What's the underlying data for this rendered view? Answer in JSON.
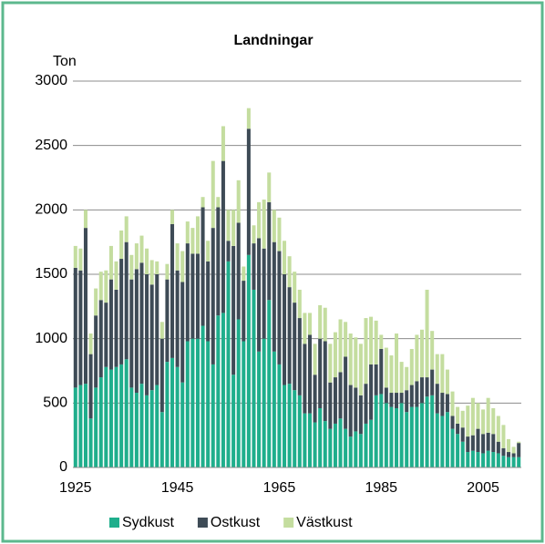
{
  "chart_data": {
    "type": "stacked_bar",
    "title": "Landningar",
    "y_label": "Ton",
    "categories": [
      "1925",
      null,
      null,
      null,
      null,
      null,
      null,
      null,
      null,
      null,
      null,
      null,
      null,
      null,
      null,
      null,
      null,
      null,
      null,
      null,
      "1945",
      null,
      null,
      null,
      null,
      null,
      null,
      null,
      null,
      null,
      null,
      null,
      null,
      null,
      null,
      null,
      null,
      null,
      null,
      null,
      "1965",
      null,
      null,
      null,
      null,
      null,
      null,
      null,
      null,
      null,
      null,
      null,
      null,
      null,
      null,
      null,
      null,
      null,
      null,
      null,
      "1985",
      null,
      null,
      null,
      null,
      null,
      null,
      null,
      null,
      null,
      null,
      null,
      null,
      null,
      null,
      null,
      null,
      null,
      null,
      null,
      "2005",
      null,
      null,
      null,
      null,
      null,
      null,
      null
    ],
    "series": [
      {
        "name": "Sydkust",
        "color": "#1fae8c",
        "values": [
          620,
          640,
          650,
          380,
          620,
          700,
          780,
          760,
          780,
          800,
          840,
          620,
          580,
          650,
          560,
          600,
          640,
          430,
          820,
          850,
          780,
          660,
          980,
          1000,
          1000,
          1100,
          980,
          800,
          1180,
          1200,
          1600,
          720,
          1150,
          980,
          1650,
          1380,
          900,
          1000,
          1300,
          900,
          800,
          640,
          650,
          600,
          560,
          420,
          420,
          350,
          460,
          360,
          300,
          340,
          380,
          300,
          240,
          280,
          260,
          340,
          370,
          560,
          570,
          500,
          470,
          460,
          500,
          430,
          470,
          470,
          500,
          550,
          560,
          420,
          400,
          430,
          300,
          260,
          200,
          120,
          130,
          120,
          110,
          130,
          120,
          110,
          90,
          80,
          80,
          80
        ]
      },
      {
        "name": "Ostkust",
        "color": "#3e4b56",
        "values": [
          930,
          890,
          1210,
          500,
          560,
          600,
          500,
          700,
          600,
          820,
          910,
          840,
          960,
          940,
          940,
          820,
          860,
          570,
          640,
          1040,
          750,
          780,
          760,
          660,
          660,
          920,
          620,
          1060,
          840,
          1180,
          160,
          1000,
          750,
          470,
          980,
          360,
          880,
          700,
          760,
          850,
          880,
          860,
          750,
          680,
          600,
          540,
          610,
          370,
          540,
          620,
          360,
          360,
          360,
          560,
          400,
          340,
          300,
          310,
          430,
          240,
          350,
          120,
          110,
          120,
          80,
          170,
          170,
          200,
          200,
          150,
          200,
          230,
          180,
          140,
          100,
          80,
          110,
          120,
          120,
          180,
          150,
          140,
          140,
          90,
          60,
          40,
          30,
          110
        ]
      },
      {
        "name": "Västkust",
        "color": "#c4dd9f",
        "values": [
          170,
          170,
          140,
          160,
          210,
          220,
          250,
          260,
          220,
          220,
          200,
          190,
          200,
          210,
          200,
          190,
          100,
          130,
          120,
          110,
          210,
          240,
          170,
          200,
          290,
          80,
          160,
          520,
          80,
          270,
          240,
          280,
          330,
          110,
          160,
          140,
          280,
          380,
          230,
          250,
          260,
          260,
          240,
          240,
          220,
          240,
          170,
          240,
          260,
          260,
          300,
          350,
          410,
          270,
          400,
          390,
          400,
          510,
          370,
          340,
          110,
          310,
          290,
          460,
          240,
          180,
          280,
          360,
          370,
          680,
          300,
          230,
          300,
          190,
          190,
          130,
          130,
          240,
          290,
          200,
          190,
          270,
          200,
          200,
          180,
          100,
          50,
          10
        ]
      }
    ],
    "ylim": [
      0,
      3000
    ],
    "yticks": [
      0,
      500,
      1000,
      1500,
      2000,
      2500,
      3000
    ],
    "grid": true
  }
}
